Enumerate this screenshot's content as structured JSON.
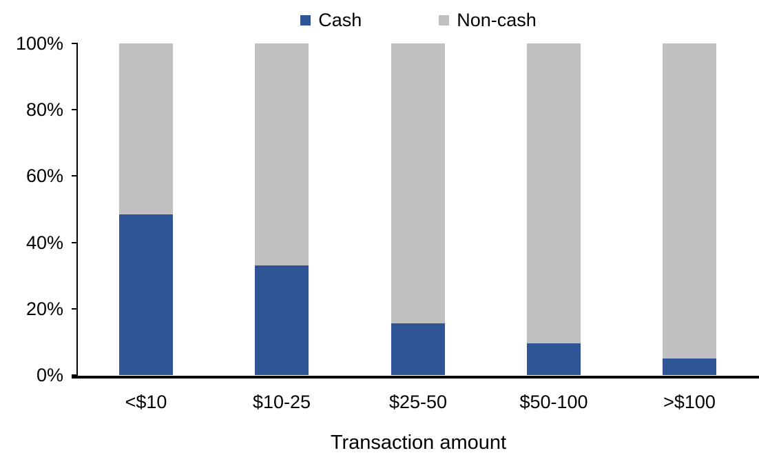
{
  "chart_data": {
    "type": "bar",
    "stacked": true,
    "units": "percent",
    "title": "",
    "xlabel": "Transaction amount",
    "ylabel": "",
    "categories": [
      "<$10",
      "$10-25",
      "$25-50",
      "$50-100",
      ">$100"
    ],
    "series": [
      {
        "name": "Cash",
        "color": "#2F5597",
        "values": [
          48.5,
          33.0,
          15.5,
          9.5,
          5.0
        ]
      },
      {
        "name": "Non-cash",
        "color": "#C0C0C0",
        "values": [
          51.5,
          67.0,
          84.5,
          90.5,
          95.0
        ]
      }
    ],
    "ylim": [
      0,
      100
    ],
    "y_ticks": [
      {
        "value": 0,
        "label": "0%"
      },
      {
        "value": 20,
        "label": "20%"
      },
      {
        "value": 40,
        "label": "40%"
      },
      {
        "value": 60,
        "label": "60%"
      },
      {
        "value": 80,
        "label": "80%"
      },
      {
        "value": 100,
        "label": "100%"
      }
    ],
    "legend_position": "top-center",
    "grid": false,
    "axis_color": "#000000"
  }
}
